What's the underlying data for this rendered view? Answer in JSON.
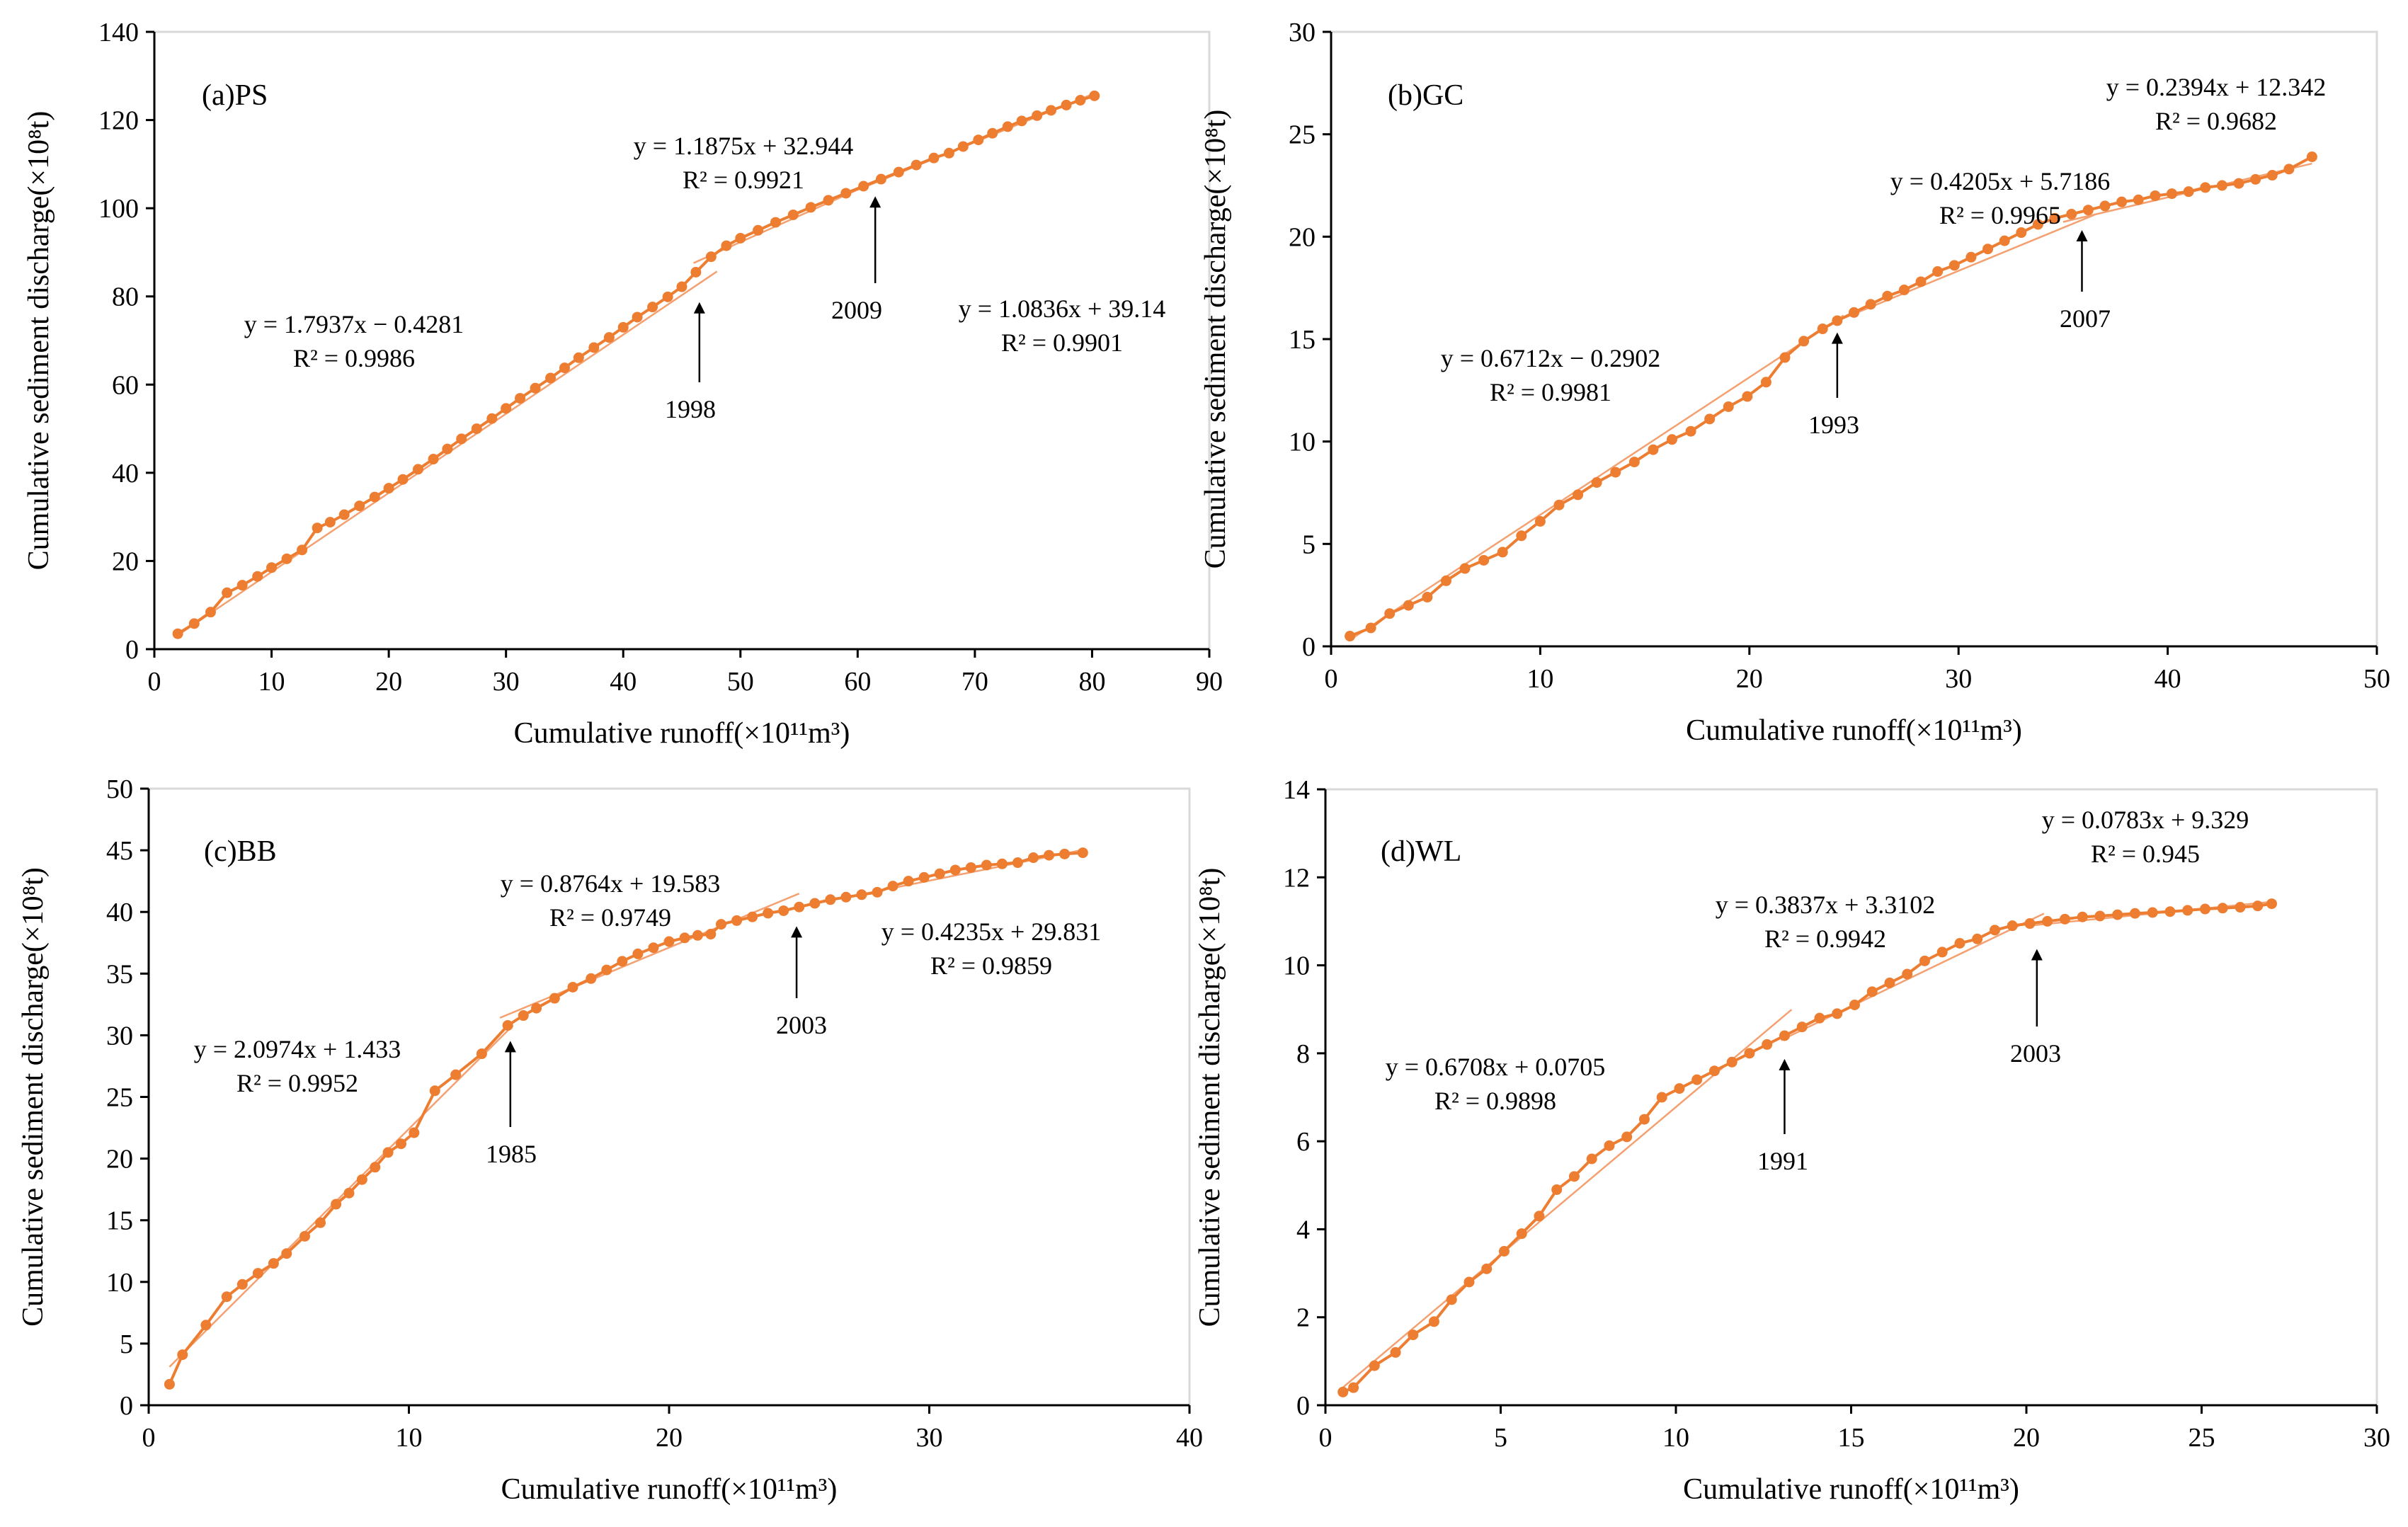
{
  "colors": {
    "series": "#ED7D31",
    "fit": "#F4A070",
    "axis": "#000000",
    "border": "#d9d9d9"
  },
  "chart_data": [
    {
      "type": "scatter",
      "panel_label": "(a)PS",
      "xlabel": "Cumulative runoff(×10¹¹m³)",
      "ylabel": "Cumulative sediment discharge(×10⁸t)",
      "xlim": [
        0,
        90
      ],
      "xticks": [
        0,
        10,
        20,
        30,
        40,
        50,
        60,
        70,
        80,
        90
      ],
      "ylim": [
        0,
        140
      ],
      "yticks": [
        0,
        20,
        40,
        60,
        80,
        100,
        120,
        140
      ],
      "series": [
        {
          "name": "PS",
          "x": [
            2,
            3.4,
            4.8,
            6.2,
            7.5,
            8.8,
            10,
            11.3,
            12.6,
            13.9,
            15,
            16.2,
            17.5,
            18.8,
            20,
            21.2,
            22.5,
            23.8,
            25,
            26.2,
            27.5,
            28.8,
            30,
            31.2,
            32.5,
            33.8,
            35,
            36.2,
            37.5,
            38.8,
            40,
            41.2,
            42.5,
            43.8,
            45,
            46.2,
            47.5,
            48.8,
            50,
            51.5,
            53,
            54.5,
            56,
            57.5,
            59,
            60.5,
            62,
            63.5,
            65,
            66.5,
            67.8,
            69,
            70.3,
            71.5,
            72.8,
            74,
            75.3,
            76.5,
            77.8,
            79,
            80.2
          ],
          "y": [
            3.5,
            5.8,
            8.4,
            12.8,
            14.5,
            16.5,
            18.5,
            20.5,
            22.5,
            27.5,
            28.8,
            30.5,
            32.5,
            34.5,
            36.5,
            38.5,
            40.8,
            43.1,
            45.4,
            47.7,
            50.0,
            52.3,
            54.6,
            56.9,
            59.2,
            61.5,
            63.8,
            66.1,
            68.4,
            70.7,
            73.0,
            75.3,
            77.6,
            79.9,
            82.2,
            85.5,
            89,
            91.5,
            93.2,
            95,
            96.8,
            98.5,
            100.2,
            101.8,
            103.4,
            105,
            106.6,
            108.2,
            109.8,
            111.4,
            112.5,
            114,
            115.5,
            117,
            118.5,
            119.8,
            121,
            122.2,
            123.4,
            124.5,
            125.5
          ]
        }
      ],
      "fits": [
        {
          "equation": "y = 1.7937x − 0.4281",
          "r2": "R² = 0.9986",
          "xrange": [
            2,
            48
          ]
        },
        {
          "equation": "y = 1.1875x + 32.944",
          "r2": "R² = 0.9921",
          "xrange": [
            46,
            62
          ]
        },
        {
          "equation": "y = 1.0836x + 39.14",
          "r2": "R² = 0.9901",
          "xrange": [
            60,
            80.2
          ]
        }
      ],
      "annotations": [
        {
          "text": "1998",
          "x": 46.5,
          "y": 80
        },
        {
          "text": "2009",
          "x": 61.5,
          "y": 104
        }
      ]
    },
    {
      "type": "scatter",
      "panel_label": "(b)GC",
      "xlabel": "Cumulative runoff(×10¹¹m³)",
      "ylabel": "Cumulative sediment discharge(×10⁸t)",
      "xlim": [
        0,
        50
      ],
      "xticks": [
        0,
        10,
        20,
        30,
        40,
        50
      ],
      "ylim": [
        0,
        30
      ],
      "yticks": [
        0,
        5,
        10,
        15,
        20,
        25,
        30
      ],
      "series": [
        {
          "name": "GC",
          "x": [
            0.9,
            1.9,
            2.8,
            3.7,
            4.6,
            5.5,
            6.4,
            7.3,
            8.2,
            9.1,
            10,
            10.9,
            11.8,
            12.7,
            13.6,
            14.5,
            15.4,
            16.3,
            17.2,
            18.1,
            19,
            19.9,
            20.8,
            21.7,
            22.6,
            23.5,
            24.2,
            25,
            25.8,
            26.6,
            27.4,
            28.2,
            29,
            29.8,
            30.6,
            31.4,
            32.2,
            33,
            33.8,
            34.6,
            35.4,
            36.2,
            37,
            37.8,
            38.6,
            39.4,
            40.2,
            41,
            41.8,
            42.6,
            43.4,
            44.2,
            45,
            45.8,
            46.9
          ],
          "y": [
            0.5,
            0.9,
            1.6,
            2.0,
            2.4,
            3.2,
            3.8,
            4.2,
            4.6,
            5.4,
            6.1,
            6.9,
            7.4,
            8.0,
            8.5,
            9.0,
            9.6,
            10.1,
            10.5,
            11.1,
            11.7,
            12.2,
            12.9,
            14.1,
            14.9,
            15.5,
            15.9,
            16.3,
            16.7,
            17.1,
            17.4,
            17.8,
            18.3,
            18.6,
            19.0,
            19.4,
            19.8,
            20.2,
            20.6,
            20.9,
            21.1,
            21.3,
            21.5,
            21.7,
            21.8,
            22.0,
            22.1,
            22.2,
            22.4,
            22.5,
            22.6,
            22.8,
            23.0,
            23.3,
            23.9
          ]
        }
      ],
      "fits": [
        {
          "equation": "y = 0.6712x − 0.2902",
          "r2": "R² = 0.9981",
          "xrange": [
            0.9,
            24.5
          ]
        },
        {
          "equation": "y = 0.4205x + 5.7186",
          "r2": "R² = 0.9965",
          "xrange": [
            24,
            36.5
          ]
        },
        {
          "equation": "y = 0.2394x + 12.342",
          "r2": "R² = 0.9682",
          "xrange": [
            35,
            46.9
          ]
        }
      ],
      "annotations": [
        {
          "text": "1993",
          "x": 24.2,
          "y": 15.6
        },
        {
          "text": "2007",
          "x": 35.9,
          "y": 20.6
        }
      ]
    },
    {
      "type": "scatter",
      "panel_label": "(c)BB",
      "xlabel": "Cumulative runoff(×10¹¹m³)",
      "ylabel": "Cumulative sediment discharge(×10⁸t)",
      "xlim": [
        0,
        40
      ],
      "xticks": [
        0,
        10,
        20,
        30,
        40
      ],
      "ylim": [
        0,
        50
      ],
      "yticks": [
        0,
        5,
        10,
        15,
        20,
        25,
        30,
        35,
        40,
        45,
        50
      ],
      "series": [
        {
          "name": "BB",
          "x": [
            0.8,
            1.3,
            2.2,
            3.0,
            3.6,
            4.2,
            4.8,
            5.3,
            6.0,
            6.6,
            7.2,
            7.7,
            8.2,
            8.7,
            9.2,
            9.7,
            10.2,
            11.0,
            11.8,
            12.8,
            13.8,
            14.4,
            14.9,
            15.6,
            16.3,
            17.0,
            17.6,
            18.2,
            18.8,
            19.4,
            20.0,
            20.6,
            21.1,
            21.6,
            22.0,
            22.6,
            23.2,
            23.8,
            24.4,
            25.0,
            25.6,
            26.2,
            26.8,
            27.4,
            28.0,
            28.6,
            29.2,
            29.8,
            30.4,
            31.0,
            31.6,
            32.2,
            32.8,
            33.4,
            34.0,
            34.6,
            35.2,
            35.9
          ],
          "y": [
            1.7,
            4.1,
            6.5,
            8.8,
            9.8,
            10.7,
            11.5,
            12.3,
            13.7,
            14.8,
            16.3,
            17.2,
            18.3,
            19.3,
            20.5,
            21.2,
            22.1,
            25.5,
            26.8,
            28.5,
            30.8,
            31.6,
            32.2,
            33.0,
            33.9,
            34.6,
            35.3,
            36.0,
            36.6,
            37.1,
            37.6,
            37.9,
            38.1,
            38.2,
            39.0,
            39.3,
            39.6,
            39.9,
            40.1,
            40.4,
            40.7,
            41.0,
            41.2,
            41.4,
            41.6,
            42.1,
            42.5,
            42.8,
            43.1,
            43.4,
            43.6,
            43.8,
            43.9,
            44.0,
            44.4,
            44.6,
            44.7,
            44.8
          ]
        }
      ],
      "fits": [
        {
          "equation": "y = 2.0974x + 1.433",
          "r2": "R² = 0.9952",
          "xrange": [
            0.8,
            14
          ]
        },
        {
          "equation": "y = 0.8764x + 19.583",
          "r2": "R² = 0.9749",
          "xrange": [
            13.5,
            25
          ]
        },
        {
          "equation": "y = 0.4235x + 29.831",
          "r2": "R² = 0.9859",
          "xrange": [
            24,
            35.9
          ]
        }
      ],
      "annotations": [
        {
          "text": "1985",
          "x": 13.9,
          "y": 30
        },
        {
          "text": "2003",
          "x": 24.9,
          "y": 39.3
        }
      ]
    },
    {
      "type": "scatter",
      "panel_label": "(d)WL",
      "xlabel": "Cumulative runoff(×10¹¹m³)",
      "ylabel": "Cumulative sediment discharge(×10⁸t)",
      "xlim": [
        0,
        30
      ],
      "xticks": [
        0,
        5,
        10,
        15,
        20,
        25,
        30
      ],
      "ylim": [
        0,
        14
      ],
      "yticks": [
        0,
        2,
        4,
        6,
        8,
        10,
        12,
        14
      ],
      "series": [
        {
          "name": "WL",
          "x": [
            0.5,
            0.8,
            1.4,
            2.0,
            2.5,
            3.1,
            3.6,
            4.1,
            4.6,
            5.1,
            5.6,
            6.1,
            6.6,
            7.1,
            7.6,
            8.1,
            8.6,
            9.1,
            9.6,
            10.1,
            10.6,
            11.1,
            11.6,
            12.1,
            12.6,
            13.1,
            13.6,
            14.1,
            14.6,
            15.1,
            15.6,
            16.1,
            16.6,
            17.1,
            17.6,
            18.1,
            18.6,
            19.1,
            19.6,
            20.1,
            20.6,
            21.1,
            21.6,
            22.1,
            22.6,
            23.1,
            23.6,
            24.1,
            24.6,
            25.1,
            25.6,
            26.1,
            26.6,
            27.0
          ],
          "y": [
            0.3,
            0.4,
            0.9,
            1.2,
            1.6,
            1.9,
            2.4,
            2.8,
            3.1,
            3.5,
            3.9,
            4.3,
            4.9,
            5.2,
            5.6,
            5.9,
            6.1,
            6.5,
            7.0,
            7.2,
            7.4,
            7.6,
            7.8,
            8.0,
            8.2,
            8.4,
            8.6,
            8.8,
            8.9,
            9.1,
            9.4,
            9.6,
            9.8,
            10.1,
            10.3,
            10.5,
            10.6,
            10.8,
            10.9,
            10.95,
            11.0,
            11.05,
            11.1,
            11.12,
            11.15,
            11.18,
            11.2,
            11.22,
            11.25,
            11.28,
            11.3,
            11.32,
            11.35,
            11.4
          ]
        }
      ],
      "fits": [
        {
          "equation": "y = 0.6708x + 0.0705",
          "r2": "R² = 0.9898",
          "xrange": [
            0.5,
            13.3
          ]
        },
        {
          "equation": "y = 0.3837x + 3.3102",
          "r2": "R² = 0.9942",
          "xrange": [
            13,
            20.5
          ]
        },
        {
          "equation": "y = 0.0783x + 9.329",
          "r2": "R² = 0.945",
          "xrange": [
            20,
            27.0
          ]
        }
      ],
      "annotations": [
        {
          "text": "1991",
          "x": 13.1,
          "y": 8.0
        },
        {
          "text": "2003",
          "x": 20.3,
          "y": 10.5
        }
      ]
    }
  ]
}
